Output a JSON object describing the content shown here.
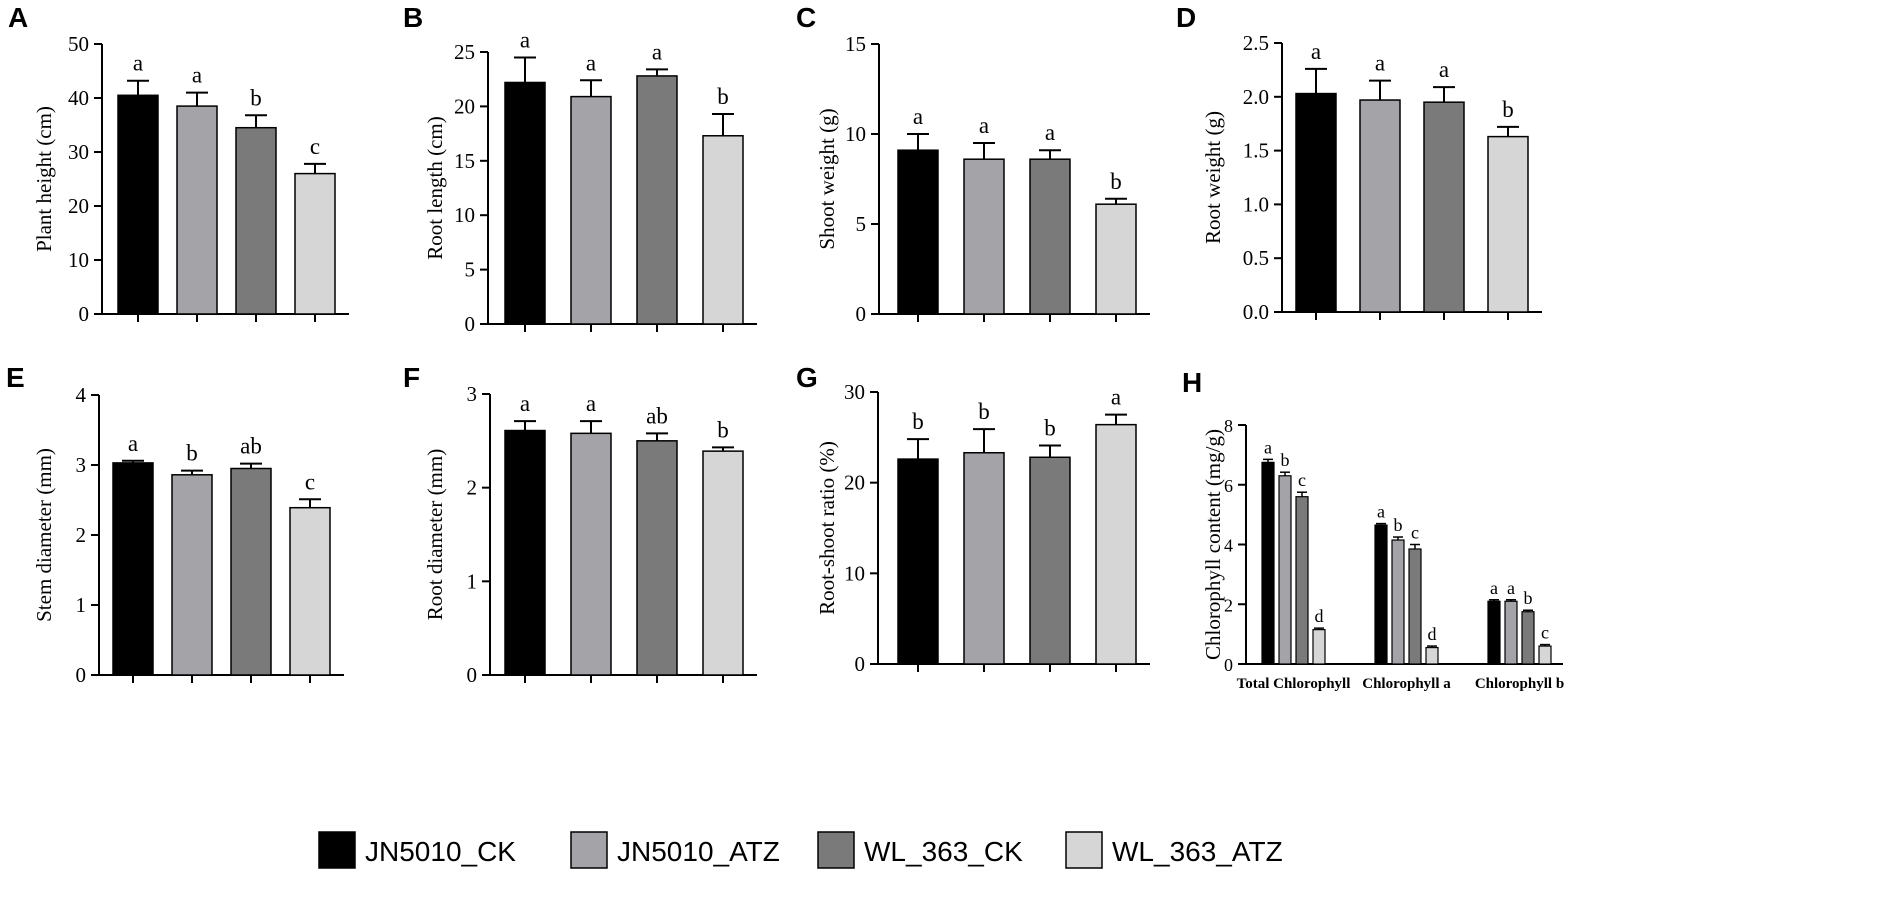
{
  "colors": {
    "JN5010_CK": "#000000",
    "JN5010_ATZ": "#a3a3a8",
    "WL_363_CK": "#7a7a7a",
    "WL_363_ATZ": "#d6d6d6"
  },
  "legend": {
    "items": [
      {
        "key": "JN5010_CK",
        "label": "JN5010_CK"
      },
      {
        "key": "JN5010_ATZ",
        "label": "JN5010_ATZ"
      },
      {
        "key": "WL_363_CK",
        "label": "WL_363_CK"
      },
      {
        "key": "WL_363_ATZ",
        "label": "WL_363_ATZ"
      }
    ]
  },
  "chart_data": [
    {
      "panel": "A",
      "type": "bar",
      "ylabel": "Plant height (cm)",
      "ylim": [
        0,
        50
      ],
      "yticks": [
        0,
        10,
        20,
        30,
        40,
        50
      ],
      "decimals": 0,
      "categories": [
        "JN5010_CK",
        "JN5010_ATZ",
        "WL_363_CK",
        "WL_363_ATZ"
      ],
      "values": [
        40.5,
        38.5,
        34.5,
        26
      ],
      "errors": [
        2.7,
        2.5,
        2.3,
        1.8
      ],
      "letters": [
        "a",
        "a",
        "b",
        "c"
      ]
    },
    {
      "panel": "B",
      "type": "bar",
      "ylabel": "Root length (cm)",
      "ylim": [
        0,
        25
      ],
      "yticks": [
        0,
        5,
        10,
        15,
        20,
        25
      ],
      "decimals": 0,
      "categories": [
        "JN5010_CK",
        "JN5010_ATZ",
        "WL_363_CK",
        "WL_363_ATZ"
      ],
      "values": [
        22.2,
        20.9,
        22.8,
        17.3
      ],
      "errors": [
        2.3,
        1.5,
        0.6,
        2.0
      ],
      "letters": [
        "a",
        "a",
        "a",
        "b"
      ]
    },
    {
      "panel": "C",
      "type": "bar",
      "ylabel": "Shoot weight (g)",
      "ylim": [
        0,
        15
      ],
      "yticks": [
        0,
        5,
        10,
        15
      ],
      "decimals": 0,
      "categories": [
        "JN5010_CK",
        "JN5010_ATZ",
        "WL_363_CK",
        "WL_363_ATZ"
      ],
      "values": [
        9.1,
        8.6,
        8.6,
        6.1
      ],
      "errors": [
        0.9,
        0.9,
        0.5,
        0.3
      ],
      "letters": [
        "a",
        "a",
        "a",
        "b"
      ]
    },
    {
      "panel": "D",
      "type": "bar",
      "ylabel": "Root weight (g)",
      "ylim": [
        0,
        2.5
      ],
      "yticks": [
        0,
        0.5,
        1.0,
        1.5,
        2.0,
        2.5
      ],
      "decimals": 1,
      "categories": [
        "JN5010_CK",
        "JN5010_ATZ",
        "WL_363_CK",
        "WL_363_ATZ"
      ],
      "values": [
        2.03,
        1.97,
        1.95,
        1.63
      ],
      "errors": [
        0.23,
        0.18,
        0.14,
        0.09
      ],
      "letters": [
        "a",
        "a",
        "a",
        "b"
      ]
    },
    {
      "panel": "E",
      "type": "bar",
      "ylabel": "Stem diameter (mm)",
      "ylim": [
        0,
        4
      ],
      "yticks": [
        0,
        1,
        2,
        3,
        4
      ],
      "decimals": 0,
      "categories": [
        "JN5010_CK",
        "JN5010_ATZ",
        "WL_363_CK",
        "WL_363_ATZ"
      ],
      "values": [
        3.03,
        2.86,
        2.95,
        2.39
      ],
      "errors": [
        0.03,
        0.06,
        0.07,
        0.12
      ],
      "letters": [
        "a",
        "b",
        "ab",
        "c"
      ]
    },
    {
      "panel": "F",
      "type": "bar",
      "ylabel": "Root diameter (mm)",
      "ylim": [
        0,
        3
      ],
      "yticks": [
        0,
        1,
        2,
        3
      ],
      "decimals": 0,
      "categories": [
        "JN5010_CK",
        "JN5010_ATZ",
        "WL_363_CK",
        "WL_363_ATZ"
      ],
      "values": [
        2.61,
        2.58,
        2.5,
        2.39
      ],
      "errors": [
        0.1,
        0.13,
        0.08,
        0.04
      ],
      "letters": [
        "a",
        "a",
        "ab",
        "b"
      ]
    },
    {
      "panel": "G",
      "type": "bar",
      "ylabel": "Root-shoot ratio (%)",
      "ylim": [
        0,
        30
      ],
      "yticks": [
        0,
        10,
        20,
        30
      ],
      "decimals": 0,
      "categories": [
        "JN5010_CK",
        "JN5010_ATZ",
        "WL_363_CK",
        "WL_363_ATZ"
      ],
      "values": [
        22.6,
        23.3,
        22.8,
        26.4
      ],
      "errors": [
        2.2,
        2.6,
        1.3,
        1.1
      ],
      "letters": [
        "b",
        "b",
        "b",
        "a"
      ]
    },
    {
      "panel": "H",
      "type": "grouped-bar",
      "ylabel": "Chlorophyll content (mg/g)",
      "ylim": [
        0,
        8
      ],
      "yticks": [
        0,
        2,
        4,
        6,
        8
      ],
      "decimals": 0,
      "categories": [
        "Total Chlorophyll",
        "Chlorophyll a",
        "Chlorophyll b"
      ],
      "series": [
        {
          "name": "JN5010_CK",
          "values": [
            6.75,
            4.65,
            2.1
          ],
          "errors": [
            0.1,
            0.05,
            0.05
          ],
          "letters": [
            "a",
            "a",
            "a"
          ]
        },
        {
          "name": "JN5010_ATZ",
          "values": [
            6.3,
            4.15,
            2.1
          ],
          "errors": [
            0.12,
            0.1,
            0.05
          ],
          "letters": [
            "b",
            "b",
            "a"
          ]
        },
        {
          "name": "WL_363_CK",
          "values": [
            5.6,
            3.85,
            1.75
          ],
          "errors": [
            0.15,
            0.15,
            0.05
          ],
          "letters": [
            "c",
            "c",
            "b"
          ]
        },
        {
          "name": "WL_363_ATZ",
          "values": [
            1.15,
            0.55,
            0.6
          ],
          "errors": [
            0.05,
            0.05,
            0.05
          ],
          "letters": [
            "d",
            "d",
            "c"
          ]
        }
      ]
    }
  ]
}
